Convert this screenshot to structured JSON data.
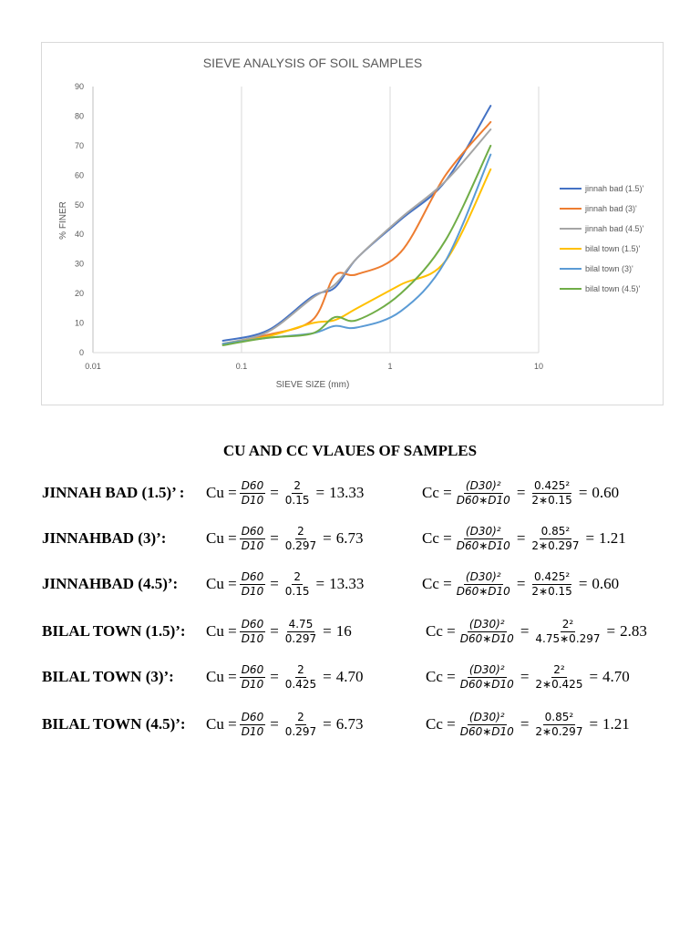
{
  "chart_data": {
    "type": "line",
    "title": "SIEVE ANALYSIS OF SOIL SAMPLES",
    "xlabel": "SIEVE SIZE (mm)",
    "ylabel": "% FINER",
    "xscale": "log",
    "xlim": [
      0.01,
      10
    ],
    "ylim": [
      0,
      90
    ],
    "xticks": [
      0.01,
      0.1,
      1,
      10
    ],
    "xtick_labels": [
      "0.01",
      "0.1",
      "1",
      "10"
    ],
    "yticks": [
      0,
      10,
      20,
      30,
      40,
      50,
      60,
      70,
      80,
      90
    ],
    "ytick_labels": [
      "0",
      "10",
      "20",
      "30",
      "40",
      "50",
      "60",
      "70",
      "80",
      "90"
    ],
    "grid": "vertical",
    "legend_position": "right",
    "series": [
      {
        "name": "jinnah bad (1.5)'",
        "color": "#4472c4",
        "x": [
          0.075,
          0.15,
          0.3,
          0.425,
          0.6,
          1.18,
          2.36,
          4.75
        ],
        "y": [
          4,
          7.5,
          19,
          22,
          32,
          45,
          58,
          83.5
        ]
      },
      {
        "name": "jinnah bad (3)'",
        "color": "#ed7d31",
        "x": [
          0.075,
          0.15,
          0.3,
          0.425,
          0.6,
          1.18,
          2.36,
          4.75
        ],
        "y": [
          3,
          6,
          11,
          26,
          26.5,
          34,
          60,
          78
        ]
      },
      {
        "name": "jinnah bad (4.5)'",
        "color": "#a5a5a5",
        "x": [
          0.075,
          0.15,
          0.3,
          0.425,
          0.6,
          1.18,
          2.36,
          4.75
        ],
        "y": [
          3,
          7,
          18.5,
          23,
          32,
          45.5,
          58,
          75.5
        ]
      },
      {
        "name": "bilal town (1.5)'",
        "color": "#ffc000",
        "x": [
          0.075,
          0.15,
          0.3,
          0.425,
          0.6,
          1.18,
          2.36,
          4.75
        ],
        "y": [
          3,
          5.5,
          10,
          11,
          15,
          23,
          31,
          62
        ]
      },
      {
        "name": "bilal town (3)'",
        "color": "#5b9bd5",
        "x": [
          0.075,
          0.15,
          0.3,
          0.425,
          0.6,
          1.18,
          2.36,
          4.75
        ],
        "y": [
          3,
          5,
          6.5,
          9,
          8.5,
          14,
          31,
          67
        ]
      },
      {
        "name": "bilal town (4.5)'",
        "color": "#70ad47",
        "x": [
          0.075,
          0.15,
          0.3,
          0.425,
          0.6,
          1.18,
          2.36,
          4.75
        ],
        "y": [
          2.5,
          5,
          6.5,
          12,
          11,
          20,
          38,
          70
        ]
      }
    ]
  },
  "section_title": "CU AND CC  VLAUES OF SAMPLES",
  "rows": [
    {
      "label": "JINNAH BAD (1.5)’ :",
      "cu": {
        "prefix": "Cu =",
        "d_num": "D60",
        "d_den": "D10",
        "eq1": "=",
        "v_num": "2",
        "v_den": "0.15",
        "eq2": "=",
        "result": "13.33"
      },
      "cc": {
        "prefix": "Cc =",
        "d_num": "(D30)²",
        "d_den": "D60∗D10",
        "eq1": "=",
        "v_num": "0.425²",
        "v_den": "2∗0.15",
        "eq2": "=",
        "result": "0.60"
      }
    },
    {
      "label": "JINNAHBAD  (3)’:",
      "cu": {
        "prefix": "Cu =",
        "d_num": "D60",
        "d_den": "D10",
        "eq1": "=",
        "v_num": "2",
        "v_den": "0.297",
        "eq2": "=",
        "result": "6.73"
      },
      "cc": {
        "prefix": "Cc =",
        "d_num": "(D30)²",
        "d_den": "D60∗D10",
        "eq1": "=",
        "v_num": "0.85²",
        "v_den": "2∗0.297",
        "eq2": "=",
        "result": "1.21"
      }
    },
    {
      "label": "JINNAHBAD  (4.5)’:",
      "cu": {
        "prefix": "Cu =",
        "d_num": "D60",
        "d_den": "D10",
        "eq1": "=",
        "v_num": "2",
        "v_den": "0.15",
        "eq2": "=",
        "result": "13.33"
      },
      "cc": {
        "prefix": "Cc =",
        "d_num": "(D30)²",
        "d_den": "D60∗D10",
        "eq1": "=",
        "v_num": "0.425²",
        "v_den": "2∗0.15",
        "eq2": "=",
        "result": "0.60"
      }
    },
    {
      "label": "BILAL TOWN (1.5)’:",
      "cu": {
        "prefix": "Cu =",
        "d_num": "D60",
        "d_den": "D10",
        "eq1": "=",
        "v_num": "4.75",
        "v_den": "0.297",
        "eq2": "=",
        "result": "16"
      },
      "cc": {
        "prefix": "Cc =",
        "d_num": "(D30)²",
        "d_den": "D60∗D10",
        "eq1": "=",
        "v_num": "2²",
        "v_den": "4.75∗0.297",
        "eq2": "=",
        "result": "2.83"
      }
    },
    {
      "label": "BILAL TOWN (3)’:",
      "cu": {
        "prefix": "Cu =",
        "d_num": "D60",
        "d_den": "D10",
        "eq1": "=",
        "v_num": "2",
        "v_den": "0.425",
        "eq2": "=",
        "result": "4.70"
      },
      "cc": {
        "prefix": "Cc =",
        "d_num": "(D30)²",
        "d_den": "D60∗D10",
        "eq1": "=",
        "v_num": "2²",
        "v_den": "2∗0.425",
        "eq2": "=",
        "result": "4.70"
      }
    },
    {
      "label": "BILAL TOWN (4.5)’:",
      "cu": {
        "prefix": "Cu =",
        "d_num": "D60",
        "d_den": "D10",
        "eq1": "=",
        "v_num": "2",
        "v_den": "0.297",
        "eq2": "=",
        "result": "6.73"
      },
      "cc": {
        "prefix": "Cc =",
        "d_num": "(D30)²",
        "d_den": "D60∗D10",
        "eq1": "=",
        "v_num": "0.85²",
        "v_den": "2∗0.297",
        "eq2": "=",
        "result": "1.21"
      }
    }
  ]
}
